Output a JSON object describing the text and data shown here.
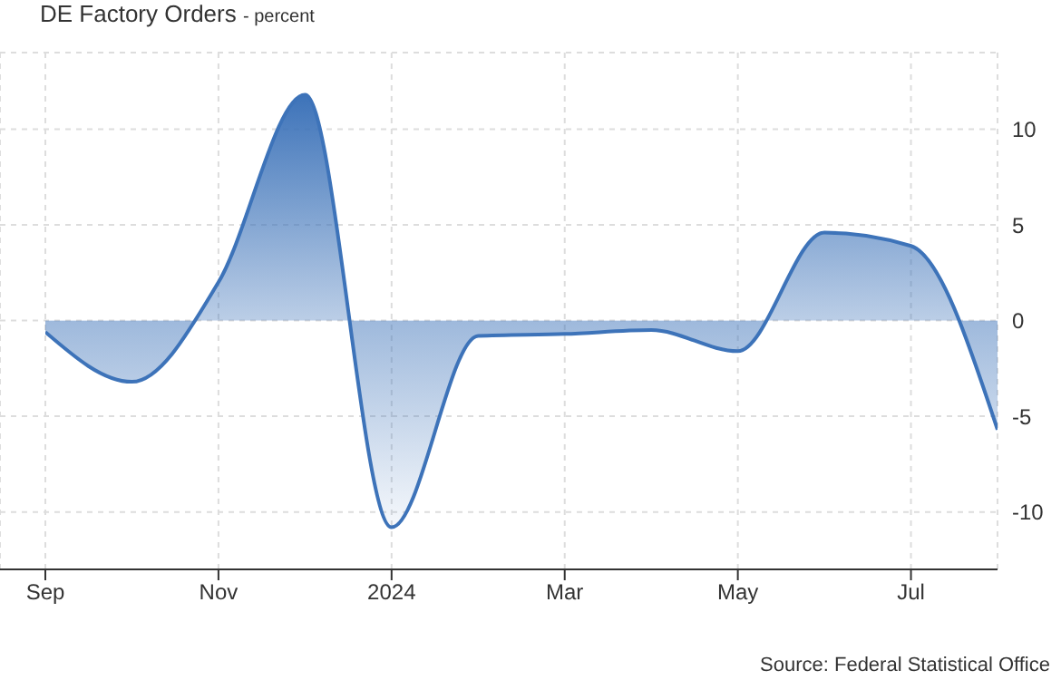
{
  "chart_data": {
    "type": "area",
    "title": "DE Factory Orders",
    "subtitle": "- percent",
    "annotations": [
      "Source: Federal Statistical Office"
    ],
    "x": [
      "2023-09",
      "2023-10",
      "2023-11",
      "2023-12",
      "2024-01",
      "2024-02",
      "2024-03",
      "2024-04",
      "2024-05",
      "2024-06",
      "2024-07",
      "2024-08"
    ],
    "series": [
      {
        "color": "#3d73b9",
        "values": [
          -0.6,
          -3.2,
          2.0,
          11.8,
          -10.8,
          -0.8,
          -0.7,
          -0.5,
          -1.6,
          4.6,
          3.9,
          -5.7
        ]
      }
    ],
    "xlim": [
      "2023-09",
      "2024-08"
    ],
    "xticks": [
      {
        "value": "2023-09",
        "label": "Sep"
      },
      {
        "value": "2023-11",
        "label": "Nov"
      },
      {
        "value": "2024-01",
        "label": "2024"
      },
      {
        "value": "2024-03",
        "label": "Mar"
      },
      {
        "value": "2024-05",
        "label": "May"
      },
      {
        "value": "2024-07",
        "label": "Jul"
      }
    ],
    "ylim": [
      -13,
      14
    ],
    "yticks": [
      -10,
      -5,
      0,
      5,
      10
    ],
    "grid": true
  }
}
